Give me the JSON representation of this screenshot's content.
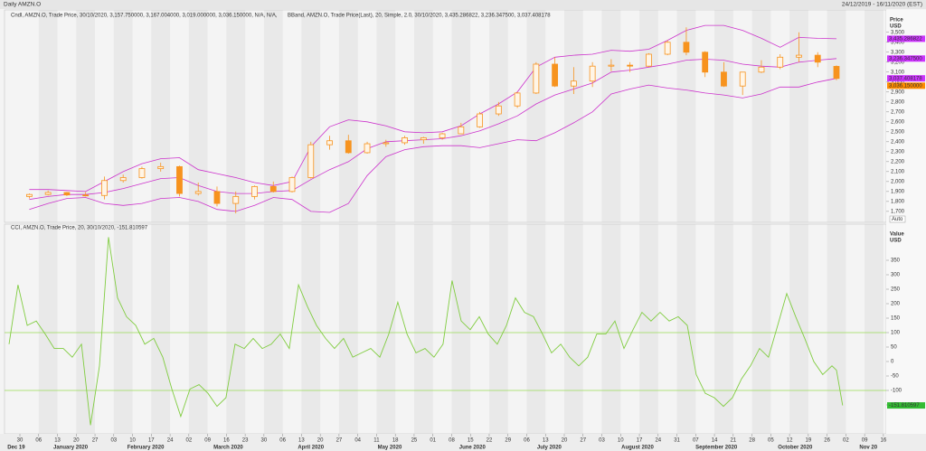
{
  "header": {
    "title": "Daily AMZN.O",
    "range": "24/12/2019 - 16/11/2020 (EST)"
  },
  "chart_data": [
    {
      "type": "candlestick",
      "legend": [
        "Cndl, AMZN.O, Trade Price, 30/10/2020, 3,157.750000, 3,167.004000, 3,019.000000, 3,036.150000, N/A, N/A,",
        "BBand, AMZN.O, Trade Price(Last), 20, Simple, 2.0, 30/10/2020, 3,435.286822, 3,236.347500, 3,037.408178"
      ],
      "legend_colors": [
        "#f7931e",
        "#cc33cc"
      ],
      "axis_title": [
        "Price",
        "USD"
      ],
      "auto": "Auto",
      "color": "#f7931e",
      "band_color": "#cc33cc",
      "x": [
        0.5,
        1.5,
        2.5,
        3.5,
        4.5,
        5.5,
        6.5,
        7.5,
        8.5,
        9.5,
        10.5,
        11.5,
        12.5,
        13.5,
        14.5,
        15.5,
        16.5,
        17.5,
        18.5,
        19.5,
        20.5,
        21.5,
        22.5,
        23.5,
        24.5,
        25.5,
        26.5,
        27.5,
        28.5,
        29.5,
        30.5,
        31.5,
        32.5,
        33.5,
        34.5,
        35.5,
        36.5,
        37.5,
        38.5,
        39.5,
        40.5,
        41.5,
        42.5,
        43.5
      ],
      "open": [
        1850,
        1870,
        1890,
        1865,
        1860,
        2010,
        2040,
        2130,
        2150,
        1880,
        1900,
        1780,
        1850,
        1950,
        1900,
        2040,
        2370,
        2410,
        2290,
        2380,
        2390,
        2420,
        2440,
        2480,
        2550,
        2680,
        2760,
        2890,
        3180,
        2960,
        3010,
        3160,
        3170,
        3160,
        3280,
        3400,
        3300,
        3100,
        2960,
        3100,
        3150,
        3250,
        3270,
        3157.75
      ],
      "high": [
        1880,
        1910,
        1895,
        1895,
        2050,
        2070,
        2150,
        2190,
        2160,
        1990,
        1950,
        1900,
        1960,
        2000,
        2050,
        2400,
        2460,
        2470,
        2400,
        2420,
        2460,
        2450,
        2490,
        2590,
        2700,
        2800,
        2900,
        3200,
        3250,
        3150,
        3200,
        3230,
        3200,
        3290,
        3420,
        3550,
        3310,
        3200,
        3100,
        3220,
        3280,
        3500,
        3300,
        3167.004
      ],
      "low": [
        1830,
        1860,
        1855,
        1850,
        1820,
        1990,
        2030,
        2100,
        1850,
        1860,
        1750,
        1680,
        1820,
        1890,
        1890,
        2030,
        2320,
        2280,
        2280,
        2350,
        2370,
        2380,
        2420,
        2480,
        2540,
        2660,
        2740,
        2880,
        2950,
        2880,
        2950,
        3110,
        3100,
        3150,
        3270,
        3270,
        3050,
        2950,
        2870,
        3090,
        3130,
        3200,
        3150,
        3019
      ],
      "close": [
        1870,
        1890,
        1865,
        1860,
        2010,
        2040,
        2130,
        2150,
        1880,
        1900,
        1780,
        1850,
        1950,
        1900,
        2040,
        2370,
        2410,
        2290,
        2380,
        2390,
        2440,
        2440,
        2480,
        2550,
        2680,
        2760,
        2890,
        3180,
        2960,
        3010,
        3160,
        3170,
        3160,
        3280,
        3400,
        3300,
        3100,
        2960,
        3100,
        3150,
        3250,
        3270,
        3200,
        3036.15
      ],
      "upper": [
        1920,
        1920,
        1910,
        1900,
        2000,
        2100,
        2180,
        2230,
        2240,
        2120,
        2080,
        2040,
        1990,
        1960,
        2000,
        2350,
        2550,
        2620,
        2600,
        2560,
        2500,
        2490,
        2500,
        2560,
        2680,
        2780,
        2900,
        3150,
        3250,
        3270,
        3280,
        3320,
        3310,
        3330,
        3420,
        3520,
        3570,
        3570,
        3520,
        3440,
        3350,
        3450,
        3440,
        3435.286822
      ],
      "middle": [
        1820,
        1850,
        1870,
        1870,
        1890,
        1930,
        1980,
        2030,
        2040,
        1960,
        1900,
        1880,
        1880,
        1900,
        1910,
        2020,
        2120,
        2200,
        2330,
        2400,
        2410,
        2420,
        2430,
        2460,
        2510,
        2580,
        2660,
        2780,
        2870,
        2930,
        2990,
        3100,
        3120,
        3150,
        3180,
        3220,
        3230,
        3220,
        3180,
        3160,
        3150,
        3200,
        3220,
        3236.3475
      ],
      "lower": [
        1720,
        1780,
        1830,
        1840,
        1780,
        1760,
        1780,
        1830,
        1840,
        1800,
        1720,
        1700,
        1760,
        1840,
        1820,
        1700,
        1690,
        1780,
        2060,
        2250,
        2320,
        2350,
        2360,
        2360,
        2340,
        2380,
        2420,
        2410,
        2490,
        2590,
        2700,
        2880,
        2930,
        2970,
        2940,
        2920,
        2890,
        2870,
        2840,
        2880,
        2950,
        2950,
        3000,
        3037.408178
      ],
      "xlim": [
        -0.82,
        46.15
      ],
      "ylim": [
        1590,
        3725
      ],
      "yticks": [
        {
          "value": 1700,
          "label": "1,700"
        },
        {
          "value": 1800,
          "label": "1,800"
        },
        {
          "value": 1900,
          "label": "1,900"
        },
        {
          "value": 2000,
          "label": "2,000"
        },
        {
          "value": 2100,
          "label": "2,100"
        },
        {
          "value": 2200,
          "label": "2,200"
        },
        {
          "value": 2300,
          "label": "2,300"
        },
        {
          "value": 2400,
          "label": "2,400"
        },
        {
          "value": 2500,
          "label": "2,500"
        },
        {
          "value": 2600,
          "label": "2,600"
        },
        {
          "value": 2700,
          "label": "2,700"
        },
        {
          "value": 2800,
          "label": "2,800"
        },
        {
          "value": 2900,
          "label": "2,900"
        },
        {
          "value": 3000,
          "label": "3,000"
        },
        {
          "value": 3100,
          "label": "3,100"
        },
        {
          "value": 3200,
          "label": "3,200"
        },
        {
          "value": 3300,
          "label": "3,300"
        },
        {
          "value": 3400,
          "label": "3,400"
        },
        {
          "value": 3500,
          "label": "3,500"
        }
      ],
      "value_tags": [
        {
          "value": 3435.286822,
          "label": "3,435.286822",
          "color": "#cc33ff"
        },
        {
          "value": 3236.3475,
          "label": "3,236.347500",
          "color": "#cc33ff"
        },
        {
          "value": 3037.408178,
          "label": "3,037.408178",
          "color": "#cc33ff"
        },
        {
          "value": 3036.15,
          "label": "3,036.150000",
          "color": "#ff8c00"
        }
      ]
    },
    {
      "type": "line",
      "legend": "CCI, AMZN.O, Trade Price, 20, 30/10/2020, -151.810597",
      "legend_color": "#66bb33",
      "axis_title": [
        "Value",
        "USD"
      ],
      "color": "#80cc40",
      "level_color": "#99dd55",
      "levels": [
        100,
        -100
      ],
      "x": [
        -0.58,
        -0.1,
        0.39,
        0.87,
        1.35,
        1.83,
        2.31,
        2.79,
        3.28,
        3.76,
        4.24,
        4.72,
        5.2,
        5.68,
        6.17,
        6.65,
        7.13,
        7.61,
        8.09,
        8.57,
        9.06,
        9.54,
        10.02,
        10.5,
        10.98,
        11.46,
        11.95,
        12.43,
        12.91,
        13.39,
        13.87,
        14.35,
        14.84,
        15.32,
        15.8,
        16.28,
        16.76,
        17.24,
        17.73,
        18.21,
        18.69,
        19.17,
        19.65,
        20.13,
        20.62,
        21.1,
        21.58,
        22.06,
        22.54,
        23.02,
        23.51,
        23.99,
        24.47,
        24.95,
        25.43,
        25.92,
        26.4,
        26.88,
        27.36,
        27.84,
        28.32,
        28.81,
        29.29,
        29.77,
        30.25,
        30.73,
        31.21,
        31.7,
        32.18,
        32.66,
        33.14,
        33.62,
        34.1,
        34.59,
        35.07,
        35.55,
        36.03,
        36.51,
        36.99,
        37.48,
        37.96,
        38.44,
        38.92,
        39.4,
        39.88,
        40.37,
        40.85,
        41.33,
        41.81,
        42.29,
        42.77,
        43.26,
        43.5,
        43.83
      ],
      "values": [
        60,
        265,
        125,
        140,
        95,
        45,
        45,
        15,
        60,
        -220,
        -15,
        430,
        220,
        155,
        125,
        60,
        80,
        15,
        -95,
        -190,
        -95,
        -80,
        -110,
        -155,
        -125,
        60,
        45,
        80,
        45,
        60,
        95,
        45,
        265,
        190,
        125,
        80,
        45,
        80,
        15,
        30,
        45,
        15,
        95,
        205,
        95,
        30,
        45,
        15,
        60,
        280,
        140,
        110,
        155,
        95,
        60,
        125,
        220,
        170,
        155,
        95,
        30,
        60,
        15,
        -15,
        15,
        95,
        95,
        140,
        45,
        110,
        170,
        140,
        170,
        140,
        155,
        125,
        -45,
        -110,
        -125,
        -155,
        -125,
        -60,
        -15,
        45,
        15,
        125,
        235,
        155,
        80,
        0,
        -45,
        -15,
        -30,
        -151.810597
      ],
      "last_label": "-151.810597",
      "last_color": "#33bb33",
      "xlim": [
        -0.82,
        46.15
      ],
      "ylim": [
        -250,
        475
      ],
      "yticks": [
        -150,
        -100,
        -50,
        0,
        50,
        100,
        150,
        200,
        250,
        300,
        350
      ],
      "xticks": [
        {
          "value": 0,
          "label": "30"
        },
        {
          "value": 1,
          "label": "06"
        },
        {
          "value": 2,
          "label": "13"
        },
        {
          "value": 3,
          "label": "20"
        },
        {
          "value": 4,
          "label": "27"
        },
        {
          "value": 5,
          "label": "03"
        },
        {
          "value": 6,
          "label": "10"
        },
        {
          "value": 7,
          "label": "17"
        },
        {
          "value": 8,
          "label": "24"
        },
        {
          "value": 9,
          "label": "02"
        },
        {
          "value": 10,
          "label": "09"
        },
        {
          "value": 11,
          "label": "16"
        },
        {
          "value": 12,
          "label": "23"
        },
        {
          "value": 13,
          "label": "30"
        },
        {
          "value": 14,
          "label": "06"
        },
        {
          "value": 15,
          "label": "13"
        },
        {
          "value": 16,
          "label": "20"
        },
        {
          "value": 17,
          "label": "27"
        },
        {
          "value": 18,
          "label": "04"
        },
        {
          "value": 19,
          "label": "11"
        },
        {
          "value": 20,
          "label": "18"
        },
        {
          "value": 21,
          "label": "25"
        },
        {
          "value": 22,
          "label": "01"
        },
        {
          "value": 23,
          "label": "08"
        },
        {
          "value": 24,
          "label": "15"
        },
        {
          "value": 25,
          "label": "22"
        },
        {
          "value": 26,
          "label": "29"
        },
        {
          "value": 27,
          "label": "06"
        },
        {
          "value": 28,
          "label": "13"
        },
        {
          "value": 29,
          "label": "20"
        },
        {
          "value": 30,
          "label": "27"
        },
        {
          "value": 31,
          "label": "03"
        },
        {
          "value": 32,
          "label": "10"
        },
        {
          "value": 33,
          "label": "17"
        },
        {
          "value": 34,
          "label": "24"
        },
        {
          "value": 35,
          "label": "31"
        },
        {
          "value": 36,
          "label": "07"
        },
        {
          "value": 37,
          "label": "14"
        },
        {
          "value": 38,
          "label": "21"
        },
        {
          "value": 39,
          "label": "28"
        },
        {
          "value": 40,
          "label": "05"
        },
        {
          "value": 41,
          "label": "12"
        },
        {
          "value": 42,
          "label": "19"
        },
        {
          "value": 43,
          "label": "26"
        },
        {
          "value": 44,
          "label": "02"
        },
        {
          "value": 45,
          "label": "09"
        },
        {
          "value": 46,
          "label": "16"
        }
      ],
      "month_labels": [
        {
          "value": -0.2,
          "label": "Dec 19"
        },
        {
          "value": 2.7,
          "label": "January 2020"
        },
        {
          "value": 6.7,
          "label": "February 2020"
        },
        {
          "value": 11.1,
          "label": "March 2020"
        },
        {
          "value": 15.5,
          "label": "April 2020"
        },
        {
          "value": 19.7,
          "label": "May 2020"
        },
        {
          "value": 24.1,
          "label": "June 2020"
        },
        {
          "value": 28.2,
          "label": "July 2020"
        },
        {
          "value": 32.9,
          "label": "August 2020"
        },
        {
          "value": 37.1,
          "label": "September 2020"
        },
        {
          "value": 41.3,
          "label": "October 2020"
        },
        {
          "value": 45.2,
          "label": "Nov 20"
        }
      ]
    }
  ]
}
